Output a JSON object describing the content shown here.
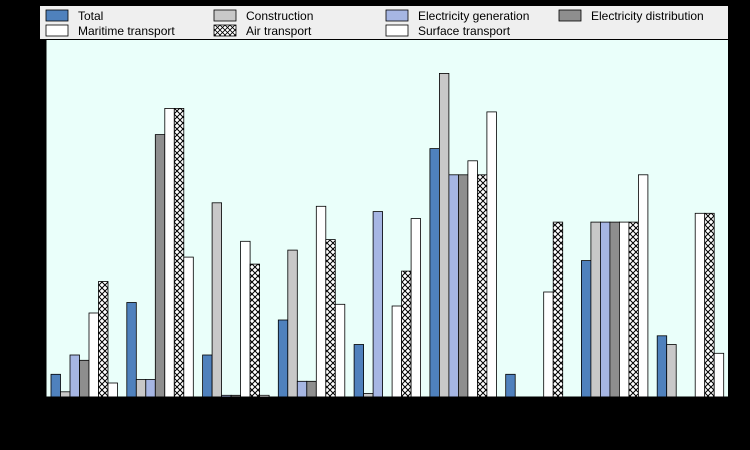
{
  "chart_data": {
    "type": "bar",
    "title": "",
    "xlabel": "",
    "ylabel": "",
    "ylim": [
      0,
      100
    ],
    "grid": false,
    "legend_position": "top",
    "categories": [
      "",
      "",
      "",
      "",
      "",
      "",
      "",
      "",
      ""
    ],
    "series": [
      {
        "name": "Total",
        "color": "#4f81bd",
        "pattern": "solid",
        "values": [
          6.5,
          27,
          12,
          22,
          15,
          71,
          6.5,
          39,
          17.5
        ]
      },
      {
        "name": "Construction",
        "color": "#c8c8c8",
        "pattern": "solid",
        "values": [
          1.5,
          5,
          55.5,
          42,
          1,
          92.5,
          null,
          50,
          15
        ]
      },
      {
        "name": "Electricity generation",
        "color": "#a6b6e3",
        "pattern": "solid",
        "values": [
          12,
          5,
          0.5,
          4.5,
          53,
          63.5,
          null,
          50,
          null
        ]
      },
      {
        "name": "Electricity distribution",
        "color": "#8e8e8e",
        "pattern": "solid",
        "values": [
          10.5,
          75,
          0.5,
          4.5,
          null,
          63.5,
          null,
          50,
          null
        ]
      },
      {
        "name": "Maritime transport",
        "color": "#ffffff",
        "pattern": "solid",
        "values": [
          24,
          82.5,
          44.5,
          54.5,
          26,
          67.5,
          30,
          50,
          52.5
        ]
      },
      {
        "name": "Air transport",
        "color": "#ffffff",
        "pattern": "cross",
        "values": [
          33,
          82.5,
          38,
          45,
          36,
          63.5,
          50,
          50,
          52.5
        ]
      },
      {
        "name": "Surface transport",
        "color": "#ffffff",
        "pattern": "solid",
        "values": [
          4,
          40,
          0.5,
          26.5,
          51,
          81.5,
          null,
          63.5,
          12.5
        ]
      }
    ]
  }
}
